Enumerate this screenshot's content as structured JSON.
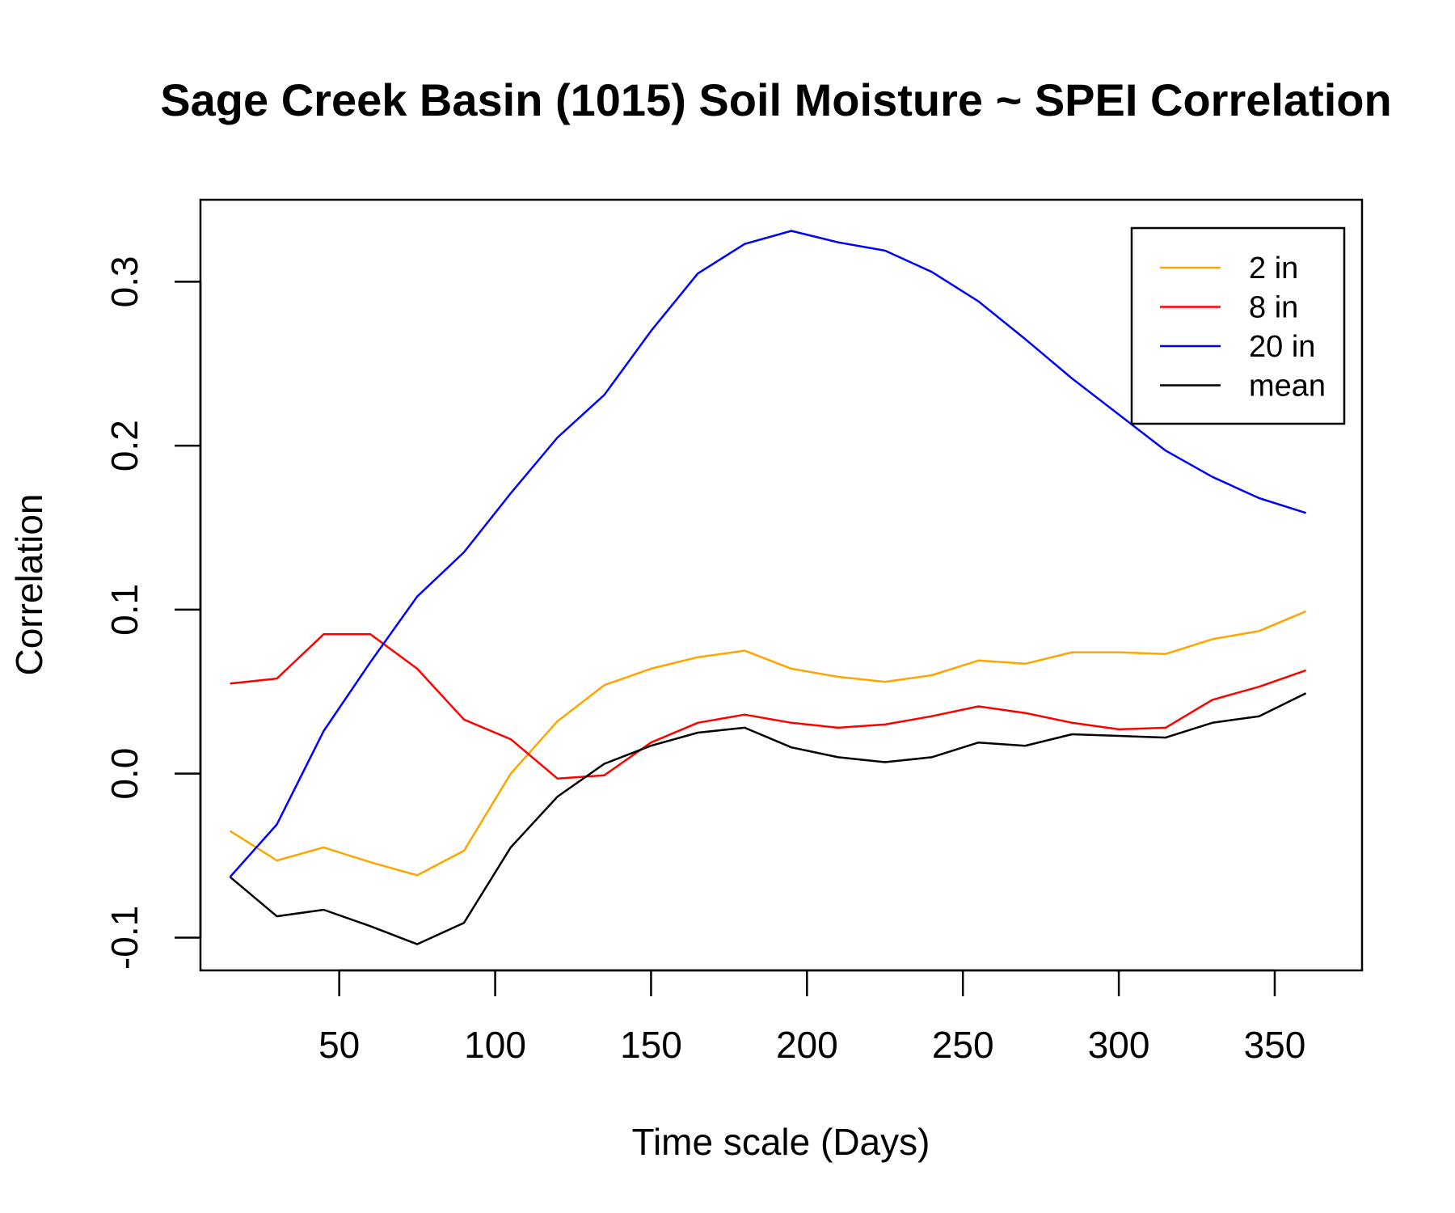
{
  "chart_data": {
    "type": "line",
    "title": "Sage Creek Basin (1015) Soil Moisture ~ SPEI Correlation",
    "xlabel": "Time scale (Days)",
    "ylabel": "Correlation",
    "xlim": [
      5.5,
      378
    ],
    "ylim": [
      -0.12,
      0.35
    ],
    "x_ticks": [
      50,
      100,
      150,
      200,
      250,
      300,
      350
    ],
    "x_tick_labels": [
      "50",
      "100",
      "150",
      "200",
      "250",
      "300",
      "350"
    ],
    "y_ticks": [
      -0.1,
      0.0,
      0.1,
      0.2,
      0.3
    ],
    "y_tick_labels": [
      "-0.1",
      "0.0",
      "0.1",
      "0.2",
      "0.3"
    ],
    "legend_position": "top-right",
    "grid": false,
    "x": [
      15,
      30,
      45,
      60,
      75,
      90,
      105,
      120,
      135,
      150,
      165,
      180,
      195,
      210,
      225,
      240,
      255,
      270,
      285,
      300,
      315,
      330,
      345,
      360
    ],
    "series": [
      {
        "name": "2 in",
        "color": "#FFA500",
        "values": [
          -0.035,
          -0.053,
          -0.045,
          -0.054,
          -0.062,
          -0.047,
          0.0,
          0.032,
          0.054,
          0.064,
          0.071,
          0.075,
          0.064,
          0.059,
          0.056,
          0.06,
          0.069,
          0.067,
          0.074,
          0.074,
          0.073,
          0.082,
          0.087,
          0.099
        ]
      },
      {
        "name": "8 in",
        "color": "#FF0000",
        "values": [
          0.055,
          0.058,
          0.085,
          0.085,
          0.064,
          0.033,
          0.021,
          -0.003,
          -0.001,
          0.019,
          0.031,
          0.036,
          0.031,
          0.028,
          0.03,
          0.035,
          0.041,
          0.037,
          0.031,
          0.027,
          0.028,
          0.045,
          0.053,
          0.063
        ]
      },
      {
        "name": "20 in",
        "color": "#0000FF",
        "values": [
          -0.063,
          -0.031,
          0.026,
          0.068,
          0.108,
          0.135,
          0.171,
          0.205,
          0.231,
          0.27,
          0.305,
          0.323,
          0.331,
          0.324,
          0.319,
          0.306,
          0.288,
          0.265,
          0.241,
          0.219,
          0.197,
          0.181,
          0.168,
          0.159
        ]
      },
      {
        "name": "mean",
        "color": "#000000",
        "values": [
          -0.063,
          -0.087,
          -0.083,
          -0.093,
          -0.104,
          -0.091,
          -0.045,
          -0.014,
          0.006,
          0.017,
          0.025,
          0.028,
          0.016,
          0.01,
          0.007,
          0.01,
          0.019,
          0.017,
          0.024,
          0.023,
          0.022,
          0.031,
          0.035,
          0.049
        ]
      }
    ]
  }
}
